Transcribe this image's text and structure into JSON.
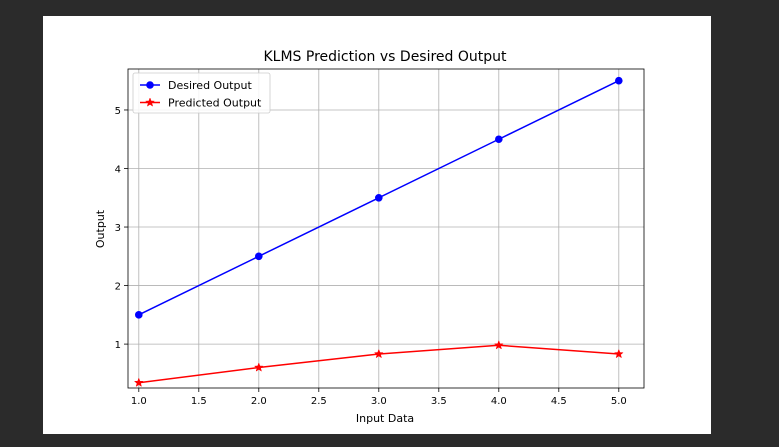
{
  "chart_data": {
    "type": "line",
    "title": "KLMS Prediction vs Desired Output",
    "xlabel": "Input Data",
    "ylabel": "Output",
    "x": [
      1.0,
      2.0,
      3.0,
      4.0,
      5.0
    ],
    "xlim": [
      0.91,
      5.21
    ],
    "ylim": [
      0.25,
      5.7
    ],
    "xticks": [
      "1.0",
      "1.5",
      "2.0",
      "2.5",
      "3.0",
      "3.5",
      "4.0",
      "4.5",
      "5.0"
    ],
    "xtick_values": [
      1.0,
      1.5,
      2.0,
      2.5,
      3.0,
      3.5,
      4.0,
      4.5,
      5.0
    ],
    "yticks": [
      "1",
      "2",
      "3",
      "4",
      "5"
    ],
    "ytick_values": [
      1,
      2,
      3,
      4,
      5
    ],
    "grid": true,
    "legend_position": "top-left",
    "series": [
      {
        "name": "Desired Output",
        "values": [
          1.5,
          2.5,
          3.5,
          4.5,
          5.5
        ],
        "color": "#0000ff",
        "marker": "circle"
      },
      {
        "name": "Predicted Output",
        "values": [
          0.34,
          0.6,
          0.83,
          0.98,
          0.83
        ],
        "color": "#ff0000",
        "marker": "star"
      }
    ]
  }
}
